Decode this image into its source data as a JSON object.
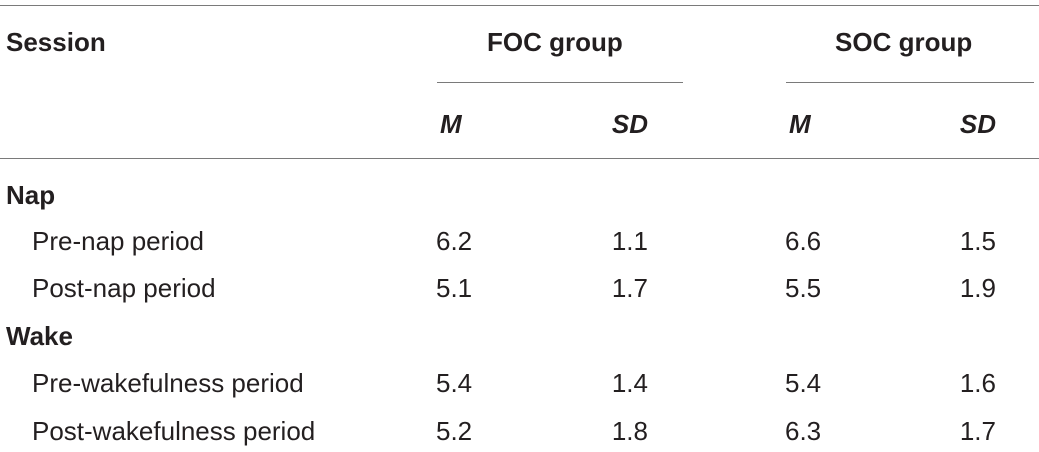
{
  "header": {
    "session_label": "Session",
    "groups": [
      {
        "label": "FOC group",
        "stats": [
          "M",
          "SD"
        ]
      },
      {
        "label": "SOC group",
        "stats": [
          "M",
          "SD"
        ]
      }
    ]
  },
  "sections": [
    {
      "label": "Nap",
      "rows": [
        {
          "label": "Pre-nap period",
          "values": [
            "6.2",
            "1.1",
            "6.6",
            "1.5"
          ]
        },
        {
          "label": "Post-nap period",
          "values": [
            "5.1",
            "1.7",
            "5.5",
            "1.9"
          ]
        }
      ]
    },
    {
      "label": "Wake",
      "rows": [
        {
          "label": "Pre-wakefulness period",
          "values": [
            "5.4",
            "1.4",
            "5.4",
            "1.6"
          ]
        },
        {
          "label": "Post-wakefulness period",
          "values": [
            "5.2",
            "1.8",
            "6.3",
            "1.7"
          ]
        }
      ]
    }
  ]
}
